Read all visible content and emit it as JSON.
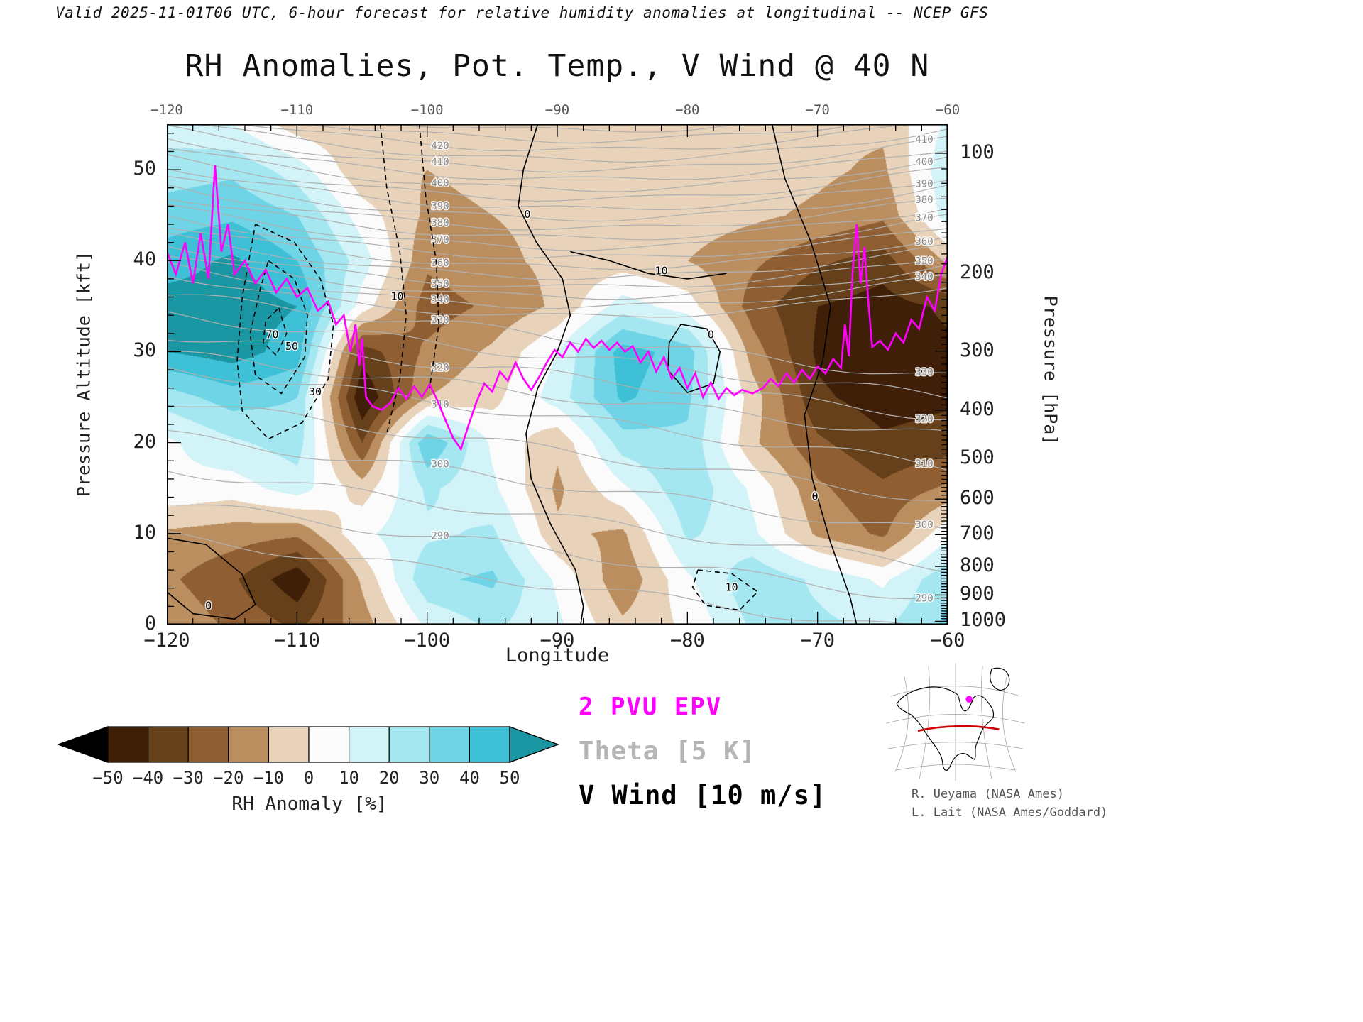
{
  "header": {
    "valid_line": "Valid 2025-11-01T06 UTC, 6-hour forecast for relative humidity anomalies at longitudinal -- NCEP GFS"
  },
  "chart": {
    "title": "RH Anomalies, Pot. Temp., V Wind @ 40 N"
  },
  "axes": {
    "x": {
      "label": "Longitude",
      "min": -120,
      "max": -60,
      "major_ticks": [
        -120,
        -110,
        -100,
        -90,
        -80,
        -70,
        -60
      ],
      "minor_step": 2
    },
    "y_left": {
      "label": "Pressure Altitude [kft]",
      "min": 0,
      "max": 55,
      "major_ticks": [
        0,
        10,
        20,
        30,
        40,
        50
      ],
      "minor_step": 2
    },
    "y_right": {
      "label": "Pressure [hPa]",
      "ticks": [
        100,
        200,
        300,
        400,
        500,
        600,
        700,
        800,
        900,
        1000
      ],
      "minor_step_hpa": 10
    }
  },
  "legend": [
    {
      "label": "2 PVU EPV",
      "color": "#ff00ff"
    },
    {
      "label": "Theta [5 K]",
      "color": "#b5b5b5"
    },
    {
      "label": "V Wind [10 m/s]",
      "color": "#000000"
    }
  ],
  "colorbar": {
    "label": "RH Anomaly [%]",
    "tick_values": [
      -50,
      -40,
      -30,
      -20,
      -10,
      0,
      10,
      20,
      30,
      40,
      50
    ],
    "segment_colors": [
      "#401f08",
      "#66401a",
      "#8f5f33",
      "#bb8e60",
      "#e8d3ba",
      "#fbfbfb",
      "#d2f3f8",
      "#a5e7f1",
      "#6fd5e6",
      "#3ec0d6"
    ],
    "arrow_low_color": "#000000",
    "arrow_high_color": "#1b97a3"
  },
  "credits": [
    "R. Ueyama (NASA Ames)",
    "L. Lait (NASA Ames/Goddard)"
  ],
  "chart_data": {
    "type": "heatmap",
    "title": "RH Anomalies, Pot. Temp., V Wind @ 40 N",
    "xlabel": "Longitude",
    "ylabel_left": "Pressure Altitude [kft]",
    "ylabel_right": "Pressure [hPa]",
    "xlim": [
      -120,
      -60
    ],
    "ylim_kft": [
      0,
      55
    ],
    "grid_lons": [
      -120,
      -115,
      -110,
      -105,
      -100,
      -95,
      -90,
      -85,
      -80,
      -75,
      -70,
      -65,
      -60
    ],
    "grid_alts_kft": [
      55,
      50,
      45,
      40,
      35,
      30,
      25,
      20,
      15,
      10,
      5,
      0
    ],
    "rh_anomaly_pct": [
      [
        15,
        10,
        -5,
        -8,
        -8,
        -8,
        -8,
        -5,
        -5,
        -5,
        -8,
        -8,
        12
      ],
      [
        25,
        28,
        15,
        -8,
        -10,
        -8,
        -8,
        -5,
        -5,
        -5,
        -8,
        -12,
        18
      ],
      [
        35,
        38,
        30,
        5,
        -12,
        -10,
        -8,
        -5,
        -5,
        -8,
        -12,
        -18,
        15
      ],
      [
        45,
        52,
        40,
        15,
        -18,
        -12,
        -8,
        -5,
        -10,
        -18,
        -28,
        -35,
        -8
      ],
      [
        55,
        55,
        50,
        5,
        -25,
        -18,
        -8,
        15,
        5,
        -25,
        -40,
        -45,
        -38
      ],
      [
        50,
        55,
        45,
        -35,
        -18,
        -8,
        10,
        45,
        35,
        -15,
        -42,
        -48,
        -42
      ],
      [
        25,
        35,
        30,
        -50,
        -10,
        -3,
        15,
        42,
        32,
        -5,
        -38,
        -45,
        -42
      ],
      [
        8,
        18,
        25,
        -30,
        40,
        8,
        -8,
        25,
        28,
        -8,
        -28,
        -38,
        -35
      ],
      [
        8,
        5,
        15,
        -5,
        22,
        12,
        -12,
        8,
        28,
        8,
        -18,
        -28,
        -18
      ],
      [
        -12,
        -15,
        -18,
        8,
        18,
        22,
        -8,
        -12,
        22,
        12,
        -12,
        -22,
        8
      ],
      [
        -18,
        -28,
        -48,
        -8,
        28,
        32,
        8,
        -18,
        8,
        28,
        18,
        8,
        28
      ],
      [
        -12,
        -22,
        -32,
        -15,
        12,
        22,
        12,
        -8,
        2,
        22,
        22,
        18,
        32
      ]
    ],
    "epv_2pvu_line_lon_kft": [
      [
        -120,
        41
      ],
      [
        -119.3,
        38.5
      ],
      [
        -118.6,
        42
      ],
      [
        -118,
        37.5
      ],
      [
        -117.4,
        43
      ],
      [
        -116.8,
        38
      ],
      [
        -116.3,
        50.5
      ],
      [
        -115.8,
        41
      ],
      [
        -115.3,
        44
      ],
      [
        -114.8,
        38.5
      ],
      [
        -114,
        40
      ],
      [
        -113.2,
        37.5
      ],
      [
        -112.4,
        39
      ],
      [
        -111.6,
        36.5
      ],
      [
        -110.8,
        38
      ],
      [
        -110,
        36
      ],
      [
        -109.2,
        37
      ],
      [
        -108.4,
        34.5
      ],
      [
        -107.6,
        35.5
      ],
      [
        -107,
        33
      ],
      [
        -106.4,
        34
      ],
      [
        -105.9,
        30
      ],
      [
        -105.5,
        33
      ],
      [
        -105.2,
        28.5
      ],
      [
        -105,
        31.5
      ],
      [
        -104.7,
        25
      ],
      [
        -104.2,
        24
      ],
      [
        -103.5,
        23.6
      ],
      [
        -102.8,
        24.4
      ],
      [
        -102.2,
        26
      ],
      [
        -101.6,
        24.8
      ],
      [
        -101,
        26.2
      ],
      [
        -100.4,
        25
      ],
      [
        -99.8,
        26.4
      ],
      [
        -99.2,
        24.6
      ],
      [
        -98.6,
        22.5
      ],
      [
        -98,
        20.5
      ],
      [
        -97.4,
        19.3
      ],
      [
        -96.8,
        22
      ],
      [
        -96.2,
        24.5
      ],
      [
        -95.6,
        26.5
      ],
      [
        -95,
        25.6
      ],
      [
        -94.4,
        27.8
      ],
      [
        -93.8,
        26.8
      ],
      [
        -93.2,
        28.8
      ],
      [
        -92.6,
        27
      ],
      [
        -92,
        25.8
      ],
      [
        -91.4,
        27.2
      ],
      [
        -90.8,
        28.8
      ],
      [
        -90.2,
        30.2
      ],
      [
        -89.6,
        29.4
      ],
      [
        -89,
        31
      ],
      [
        -88.4,
        30
      ],
      [
        -87.8,
        31.4
      ],
      [
        -87.2,
        30.4
      ],
      [
        -86.6,
        31.2
      ],
      [
        -86,
        30.2
      ],
      [
        -85.4,
        31
      ],
      [
        -84.8,
        30
      ],
      [
        -84.2,
        30.6
      ],
      [
        -83.6,
        28.8
      ],
      [
        -83,
        30
      ],
      [
        -82.4,
        27.8
      ],
      [
        -81.8,
        29.4
      ],
      [
        -81.2,
        27
      ],
      [
        -80.6,
        28.2
      ],
      [
        -80,
        26
      ],
      [
        -79.4,
        27.6
      ],
      [
        -78.8,
        25
      ],
      [
        -78.2,
        26.6
      ],
      [
        -77.6,
        24.8
      ],
      [
        -77,
        26
      ],
      [
        -76.4,
        25.2
      ],
      [
        -75.8,
        25.8
      ],
      [
        -75,
        25.4
      ],
      [
        -74.2,
        26
      ],
      [
        -73.6,
        27
      ],
      [
        -73,
        26.2
      ],
      [
        -72.4,
        27.6
      ],
      [
        -71.8,
        26.6
      ],
      [
        -71.2,
        28
      ],
      [
        -70.6,
        27
      ],
      [
        -70,
        28.4
      ],
      [
        -69.4,
        27.6
      ],
      [
        -68.8,
        29.2
      ],
      [
        -68.2,
        28.2
      ],
      [
        -67.9,
        33
      ],
      [
        -67.6,
        29.5
      ],
      [
        -67.3,
        39
      ],
      [
        -67,
        44
      ],
      [
        -66.7,
        37.5
      ],
      [
        -66.4,
        41.5
      ],
      [
        -66.1,
        35.5
      ],
      [
        -65.8,
        30.5
      ],
      [
        -65.2,
        31.2
      ],
      [
        -64.6,
        30.2
      ],
      [
        -64,
        32
      ],
      [
        -63.4,
        31
      ],
      [
        -62.8,
        33.5
      ],
      [
        -62.2,
        32.5
      ],
      [
        -61.6,
        36
      ],
      [
        -61,
        34.5
      ],
      [
        -60.5,
        38.5
      ],
      [
        -60,
        40.5
      ]
    ],
    "theta_contours": {
      "unit": "K",
      "min": 285,
      "max": 465,
      "step": 5,
      "label_step": 10,
      "label_min": 290,
      "label_max": 460,
      "label_lons": [
        -99,
        -61.8
      ],
      "color": "#b0b0b0"
    },
    "vwind_contours": {
      "unit": "m/s",
      "interval": 10,
      "color": "#000000",
      "paths": [
        {
          "dash": false,
          "label": "0",
          "label_at": [
            -92.3,
            45
          ],
          "points": [
            [
              -91.5,
              55
            ],
            [
              -92.6,
              50
            ],
            [
              -93,
              46
            ],
            [
              -91.6,
              42
            ],
            [
              -89.6,
              38
            ],
            [
              -89,
              34
            ],
            [
              -90,
              30
            ],
            [
              -91.5,
              26
            ],
            [
              -92.4,
              21
            ],
            [
              -92,
              16
            ],
            [
              -90.5,
              11
            ],
            [
              -88.6,
              6
            ],
            [
              -88,
              2
            ],
            [
              -88.2,
              0
            ]
          ]
        },
        {
          "dash": false,
          "label": "0",
          "label_at": [
            -70.2,
            14
          ],
          "points": [
            [
              -73.5,
              55
            ],
            [
              -72.5,
              49
            ],
            [
              -70.5,
              42
            ],
            [
              -69,
              35
            ],
            [
              -69.6,
              29
            ],
            [
              -71,
              23
            ],
            [
              -70.4,
              16
            ],
            [
              -69,
              9
            ],
            [
              -67.5,
              3
            ],
            [
              -67,
              0
            ]
          ]
        },
        {
          "dash": false,
          "label": "0",
          "label_at": [
            -78.2,
            31.8
          ],
          "points": [
            [
              -80.5,
              33
            ],
            [
              -78.5,
              32.5
            ],
            [
              -77.5,
              30
            ],
            [
              -78,
              26.5
            ],
            [
              -80,
              25.5
            ],
            [
              -81.5,
              28
            ],
            [
              -81.4,
              31
            ],
            [
              -80.5,
              33
            ]
          ]
        },
        {
          "dash": false,
          "label": "0",
          "label_at": [
            -116.8,
            2
          ],
          "points": [
            [
              -120,
              9.5
            ],
            [
              -117,
              8.8
            ],
            [
              -114.2,
              5.5
            ],
            [
              -113.2,
              2.2
            ],
            [
              -114.8,
              0.6
            ],
            [
              -118,
              1.2
            ],
            [
              -120,
              3.6
            ]
          ]
        },
        {
          "dash": true,
          "label": "30",
          "label_at": [
            -108.6,
            25.5
          ],
          "points": [
            [
              -113.2,
              44
            ],
            [
              -110.2,
              42
            ],
            [
              -108.2,
              38
            ],
            [
              -107.2,
              33
            ],
            [
              -107.6,
              27
            ],
            [
              -109.6,
              22.2
            ],
            [
              -112.2,
              20.4
            ],
            [
              -114.2,
              23.5
            ],
            [
              -114.6,
              29
            ],
            [
              -114.2,
              36
            ],
            [
              -113.2,
              44
            ]
          ]
        },
        {
          "dash": true,
          "label": "50",
          "label_at": [
            -110.4,
            30.5
          ],
          "points": [
            [
              -112.2,
              40
            ],
            [
              -110.2,
              38
            ],
            [
              -109.2,
              34
            ],
            [
              -109.4,
              29.4
            ],
            [
              -111.2,
              25.4
            ],
            [
              -113.2,
              27.4
            ],
            [
              -113.6,
              32
            ],
            [
              -112.8,
              37
            ],
            [
              -112.2,
              40
            ]
          ]
        },
        {
          "dash": true,
          "label": "70",
          "label_at": [
            -111.9,
            31.8
          ],
          "points": [
            [
              -111.4,
              34.8
            ],
            [
              -110.8,
              32
            ],
            [
              -111.6,
              29.6
            ],
            [
              -112.6,
              31
            ],
            [
              -112.4,
              33.4
            ],
            [
              -111.4,
              34.8
            ]
          ]
        },
        {
          "dash": true,
          "label": "10",
          "label_at": [
            -102.3,
            36
          ],
          "points": [
            [
              -103.6,
              55
            ],
            [
              -103.1,
              48
            ],
            [
              -102.1,
              41
            ],
            [
              -101.6,
              34
            ],
            [
              -102.1,
              27
            ],
            [
              -103.1,
              21
            ]
          ]
        },
        {
          "dash": true,
          "label": "",
          "label_at": null,
          "points": [
            [
              -100.6,
              55
            ],
            [
              -100.1,
              47
            ],
            [
              -99.3,
              40
            ],
            [
              -99.1,
              33
            ],
            [
              -99.8,
              26
            ]
          ]
        },
        {
          "dash": false,
          "label": "10",
          "label_at": [
            -82,
            38.8
          ],
          "points": [
            [
              -89,
              41
            ],
            [
              -86,
              40
            ],
            [
              -83,
              38.6
            ],
            [
              -80,
              38
            ],
            [
              -77,
              38.6
            ]
          ]
        },
        {
          "dash": true,
          "label": "10",
          "label_at": [
            -76.6,
            4
          ],
          "points": [
            [
              -79.2,
              6
            ],
            [
              -76.6,
              5.6
            ],
            [
              -74.6,
              3.6
            ],
            [
              -76,
              1.6
            ],
            [
              -78.6,
              2.1
            ],
            [
              -79.6,
              4.1
            ],
            [
              -79.2,
              6
            ]
          ]
        }
      ]
    }
  }
}
